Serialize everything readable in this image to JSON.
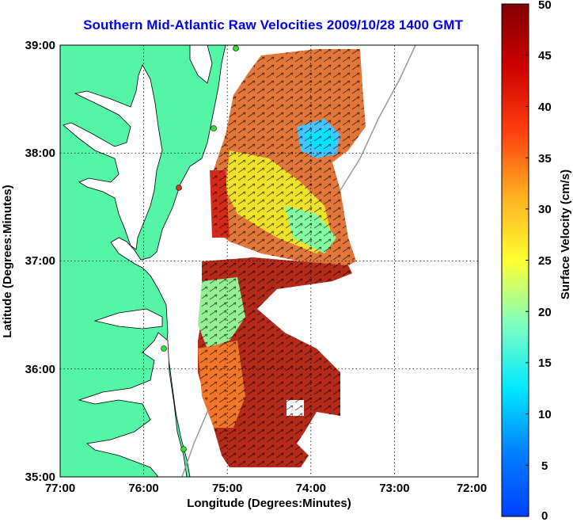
{
  "title": "Southern Mid-Atlantic Raw Velocities 2009/10/28 1400 GMT",
  "map": {
    "xlabel": "Longitude (Degrees:Minutes)",
    "ylabel": "Latitude (Degrees:Minutes)",
    "x_ticks": [
      "77:00",
      "76:00",
      "75:00",
      "74:00",
      "73:00",
      "72:00"
    ],
    "y_ticks": [
      "39:00",
      "38:00",
      "37:00",
      "36:00",
      "35:00"
    ],
    "lon_range": [
      -77,
      -72
    ],
    "lat_range": [
      35,
      39
    ],
    "grid": "dotted",
    "land_color": "#55f5a8",
    "ocean_color": "#ffffff"
  },
  "colorbar": {
    "label": "Surface Velocity (cm/s)",
    "ticks": [
      "0",
      "5",
      "10",
      "15",
      "20",
      "25",
      "30",
      "35",
      "40",
      "45",
      "50"
    ],
    "range": [
      0,
      50
    ],
    "colormap": "jet"
  },
  "chart_data": {
    "type": "heatmap",
    "title": "Southern Mid-Atlantic Raw Velocities 2009/10/28 1400 GMT",
    "xlabel": "Longitude (Degrees:Minutes)",
    "ylabel": "Latitude (Degrees:Minutes)",
    "xlim": [
      "77:00",
      "72:00"
    ],
    "ylim": [
      "35:00",
      "39:00"
    ],
    "value_label": "Surface Velocity (cm/s)",
    "value_range": [
      0,
      50
    ]
  }
}
